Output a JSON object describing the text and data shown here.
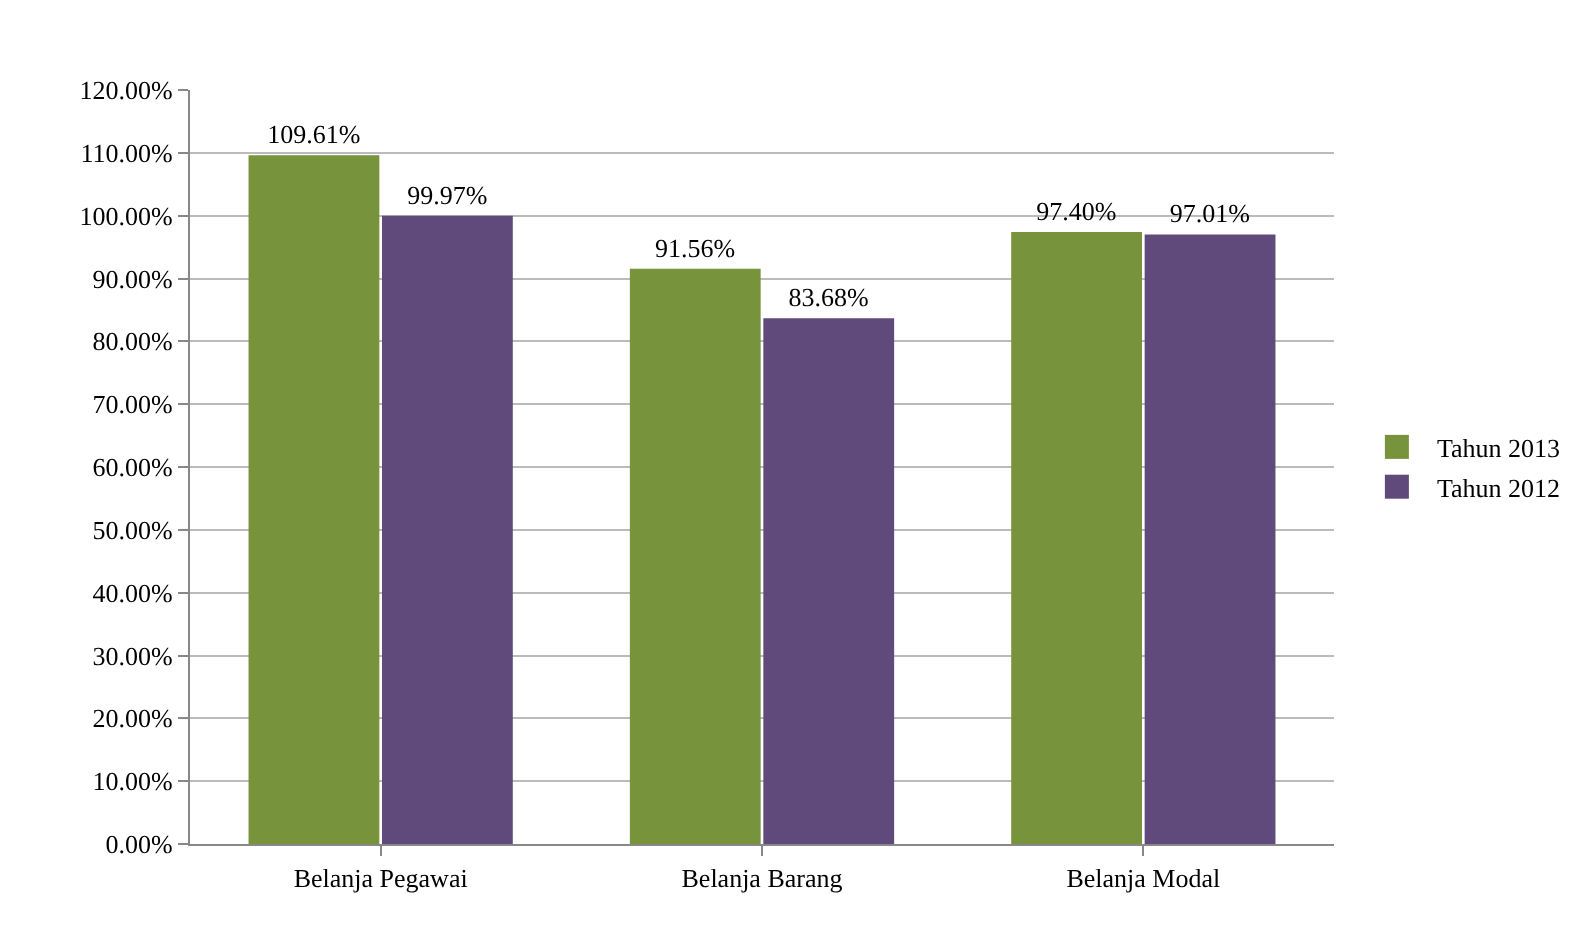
{
  "chart_data": {
    "type": "bar",
    "categories": [
      "Belanja Pegawai",
      "Belanja Barang",
      "Belanja Modal"
    ],
    "series": [
      {
        "name": "Tahun 2013",
        "color": "#77933c",
        "values": [
          109.61,
          91.56,
          97.4
        ],
        "value_labels": [
          "109.61%",
          "91.56%",
          "97.40%"
        ]
      },
      {
        "name": "Tahun 2012",
        "color": "#604a7b",
        "values": [
          99.97,
          83.68,
          97.01
        ],
        "value_labels": [
          "99.97%",
          "83.68%",
          "97.01%"
        ]
      }
    ],
    "ylim": [
      0,
      120
    ],
    "yticks": [
      {
        "value": 0,
        "label": "0.00%"
      },
      {
        "value": 10,
        "label": "10.00%"
      },
      {
        "value": 20,
        "label": "20.00%"
      },
      {
        "value": 30,
        "label": "30.00%"
      },
      {
        "value": 40,
        "label": "40.00%"
      },
      {
        "value": 50,
        "label": "50.00%"
      },
      {
        "value": 60,
        "label": "60.00%"
      },
      {
        "value": 70,
        "label": "70.00%"
      },
      {
        "value": 80,
        "label": "80.00%"
      },
      {
        "value": 90,
        "label": "90.00%"
      },
      {
        "value": 100,
        "label": "100.00%"
      },
      {
        "value": 110,
        "label": "110.00%"
      },
      {
        "value": 120,
        "label": "120.00%"
      }
    ],
    "grid": "y",
    "legend": "right"
  }
}
